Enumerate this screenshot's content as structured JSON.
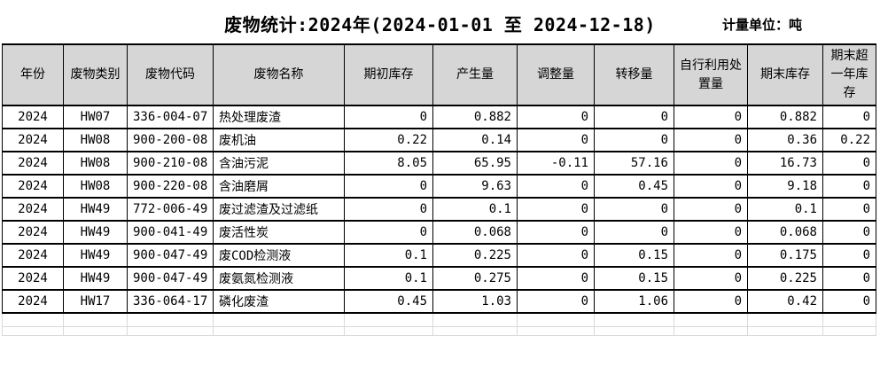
{
  "page": {
    "title": "废物统计:2024年(2024-01-01 至 2024-12-18)",
    "unit_label": "计量单位：吨"
  },
  "colors": {
    "page_bg": "#ffffff",
    "text": "#000000",
    "header_bg": "#d6d6d6",
    "table_border": "#000000",
    "ghost_grid": "#d9d9d9"
  },
  "table": {
    "columns": [
      {
        "key": "year",
        "label": "年份"
      },
      {
        "key": "waste-category",
        "label": "废物类别"
      },
      {
        "key": "waste-code",
        "label": "废物代码"
      },
      {
        "key": "waste-name",
        "label": "废物名称"
      },
      {
        "key": "opening-stock",
        "label": "期初库存"
      },
      {
        "key": "generated-amount",
        "label": "产生量"
      },
      {
        "key": "adjustment-amount",
        "label": "调整量"
      },
      {
        "key": "transferred-amount",
        "label": "转移量"
      },
      {
        "key": "self-disposal-amount",
        "label": "自行利用处置量"
      },
      {
        "key": "ending-stock",
        "label": "期末库存"
      },
      {
        "key": "over-one-year-stock",
        "label": "期末超一年库存"
      }
    ],
    "rows": [
      {
        "cells": [
          "2024",
          "HW07",
          "336-004-07",
          "热处理废渣",
          "0",
          "0.882",
          "0",
          "0",
          "0",
          "0.882",
          "0"
        ]
      },
      {
        "cells": [
          "2024",
          "HW08",
          "900-200-08",
          "废机油",
          "0.22",
          "0.14",
          "0",
          "0",
          "0",
          "0.36",
          "0.22"
        ]
      },
      {
        "cells": [
          "2024",
          "HW08",
          "900-210-08",
          "含油污泥",
          "8.05",
          "65.95",
          "-0.11",
          "57.16",
          "0",
          "16.73",
          "0"
        ]
      },
      {
        "cells": [
          "2024",
          "HW08",
          "900-220-08",
          "含油磨屑",
          "0",
          "9.63",
          "0",
          "0.45",
          "0",
          "9.18",
          "0"
        ]
      },
      {
        "cells": [
          "2024",
          "HW49",
          "772-006-49",
          "废过滤渣及过滤纸",
          "0",
          "0.1",
          "0",
          "0",
          "0",
          "0.1",
          "0"
        ]
      },
      {
        "cells": [
          "2024",
          "HW49",
          "900-041-49",
          "废活性炭",
          "0",
          "0.068",
          "0",
          "0",
          "0",
          "0.068",
          "0"
        ]
      },
      {
        "cells": [
          "2024",
          "HW49",
          "900-047-49",
          "废COD检测液",
          "0.1",
          "0.225",
          "0",
          "0.15",
          "0",
          "0.175",
          "0"
        ]
      },
      {
        "cells": [
          "2024",
          "HW49",
          "900-047-49",
          "废氨氮检测液",
          "0.1",
          "0.275",
          "0",
          "0.15",
          "0",
          "0.225",
          "0"
        ]
      },
      {
        "cells": [
          "2024",
          "HW17",
          "336-064-17",
          "磷化废渣",
          "0.45",
          "1.03",
          "0",
          "1.06",
          "0",
          "0.42",
          "0"
        ]
      }
    ]
  }
}
